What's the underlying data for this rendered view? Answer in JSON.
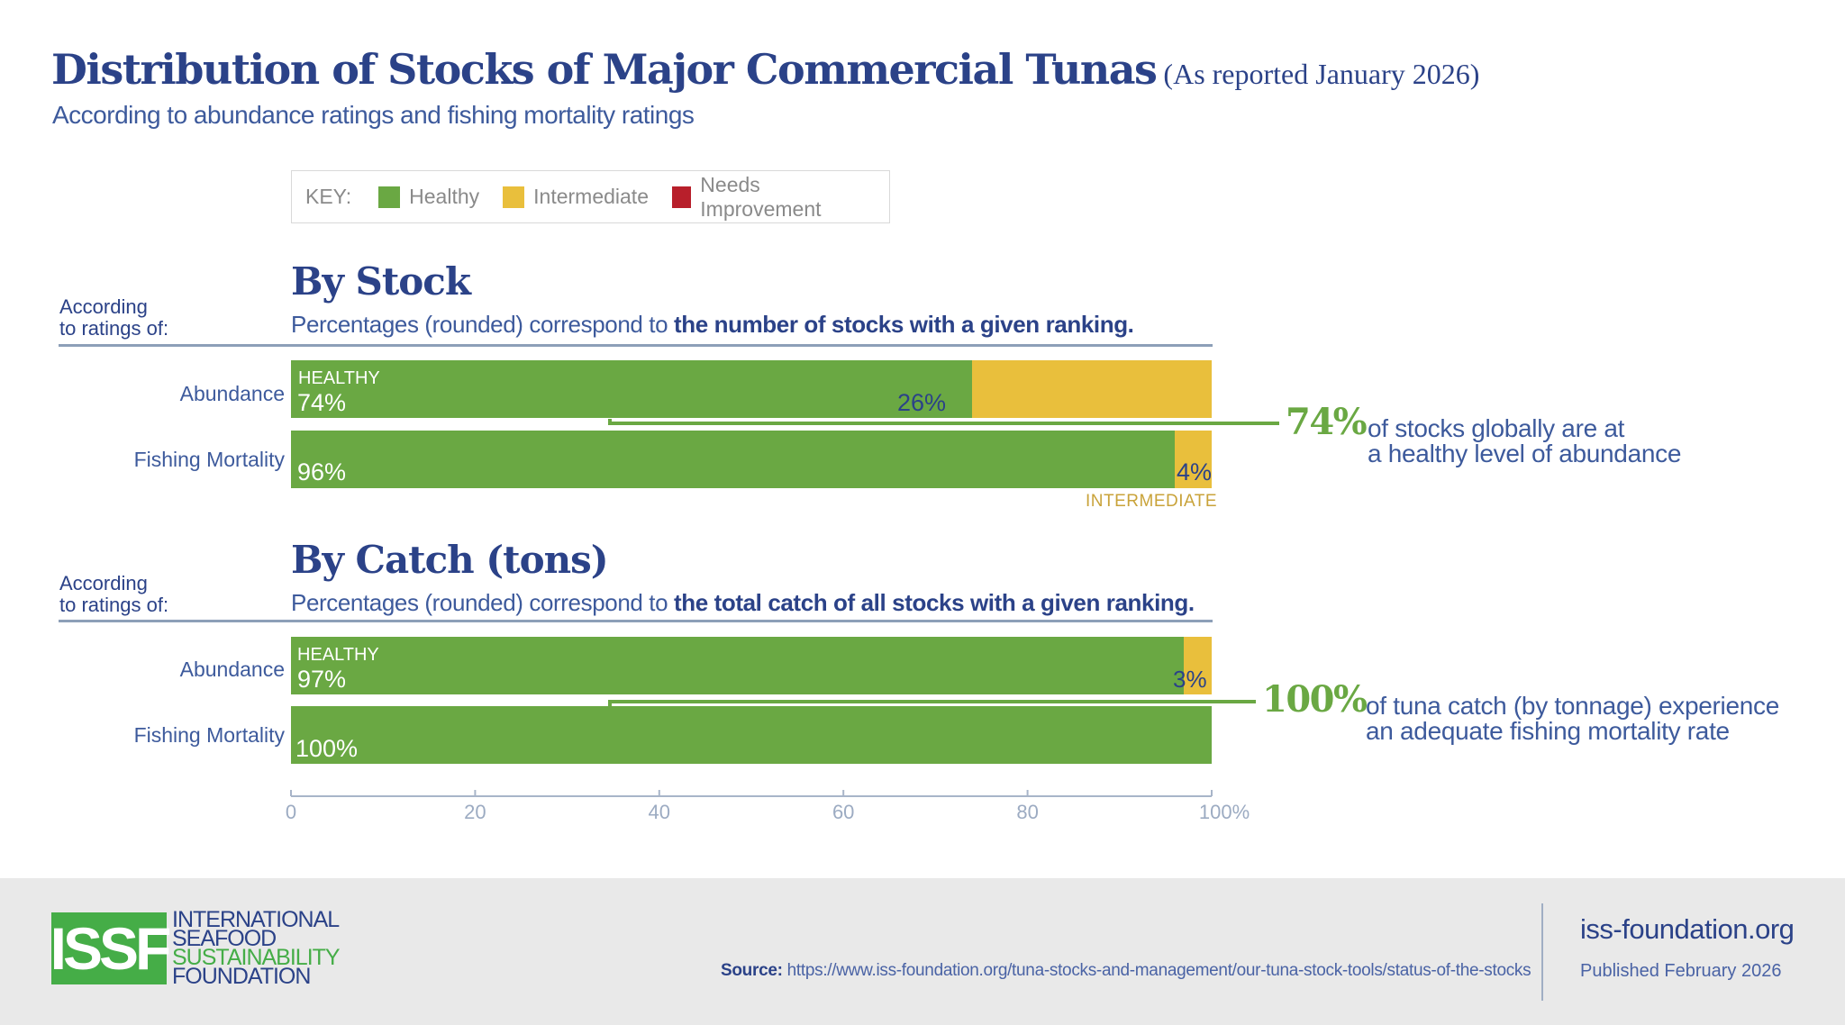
{
  "header": {
    "title": "Distribution of Stocks of Major Commercial Tunas",
    "title_note": "(As reported January 2026)",
    "subtitle": "According to abundance ratings and fishing mortality ratings"
  },
  "colors": {
    "healthy": "#6aa843",
    "intermediate": "#e9bf3c",
    "needs_improvement": "#b81f2b",
    "navy": "#2b4288"
  },
  "chart_data": {
    "type": "bar",
    "orientation": "horizontal-stacked",
    "title": "Distribution of Stocks of Major Commercial Tunas (As reported January 2026)",
    "subtitle": "According to abundance ratings and fishing mortality ratings",
    "xlabel": "",
    "xlim": [
      0,
      100
    ],
    "x_ticks": [
      "0",
      "20",
      "40",
      "60",
      "80",
      "100%"
    ],
    "x_tick_values": [
      0,
      20,
      40,
      60,
      80,
      100
    ],
    "legend": {
      "label": "KEY:",
      "placement": "top",
      "entries": [
        "Healthy",
        "Intermediate",
        "Needs Improvement"
      ]
    },
    "panels": [
      {
        "title": "By Stock",
        "row_header": [
          "According",
          "to ratings of:"
        ],
        "description_plain": "Percentages (rounded) correspond to ",
        "description_bold": "the number of stocks with a given ranking.",
        "categories": [
          "Abundance",
          "Fishing Mortality"
        ],
        "series": [
          {
            "name": "Healthy",
            "values": [
              74,
              96
            ],
            "labels": [
              "74%",
              "96%"
            ]
          },
          {
            "name": "Intermediate",
            "values": [
              26,
              4
            ],
            "labels": [
              "26%",
              "4%"
            ]
          },
          {
            "name": "Needs Improvement",
            "values": [
              0,
              0
            ],
            "labels": [
              "",
              ""
            ]
          }
        ],
        "annotations": {
          "healthy_tag": "HEALTHY",
          "intermediate_tag": "INTERMEDIATE",
          "callout_value": "74%",
          "callout_line1": "of stocks globally are at",
          "callout_line2": "a healthy level of abundance"
        }
      },
      {
        "title": "By Catch (tons)",
        "row_header": [
          "According",
          "to ratings of:"
        ],
        "description_plain": "Percentages (rounded) correspond to ",
        "description_bold": "the total catch of all stocks with a given ranking.",
        "categories": [
          "Abundance",
          "Fishing Mortality"
        ],
        "series": [
          {
            "name": "Healthy",
            "values": [
              97,
              100
            ],
            "labels": [
              "97%",
              "100%"
            ]
          },
          {
            "name": "Intermediate",
            "values": [
              3,
              0
            ],
            "labels": [
              "3%",
              ""
            ]
          },
          {
            "name": "Needs Improvement",
            "values": [
              0,
              0
            ],
            "labels": [
              "",
              ""
            ]
          }
        ],
        "annotations": {
          "healthy_tag": "HEALTHY",
          "callout_value": "100%",
          "callout_line1": "of tuna catch (by tonnage) experience",
          "callout_line2": "an adequate fishing mortality rate"
        }
      }
    ]
  },
  "footer": {
    "logo_mark": "ISSF",
    "logo_lines": [
      "INTERNATIONAL",
      "SEAFOOD",
      "SUSTAINABILITY",
      "FOUNDATION"
    ],
    "source_label": "Source:",
    "source_url": "https://www.iss-foundation.org/tuna-stocks-and-management/our-tuna-stock-tools/status-of-the-stocks",
    "site": "iss-foundation.org",
    "published": "Published February 2026"
  }
}
